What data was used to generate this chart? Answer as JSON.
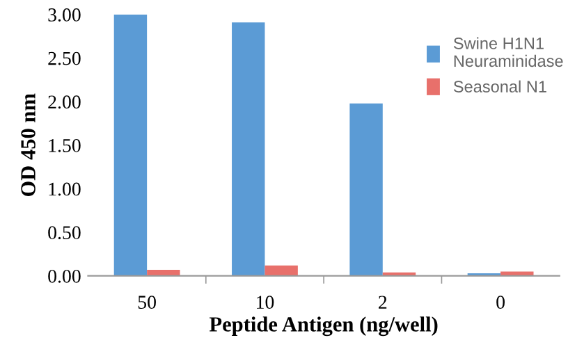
{
  "chart_data": {
    "type": "bar",
    "xlabel": "Peptide Antigen (ng/well)",
    "ylabel": "OD 450 nm",
    "categories": [
      "50",
      "10",
      "2",
      "0"
    ],
    "series": [
      {
        "name": "Swine H1N1\nNeuraminidase",
        "color": "#5b9bd5",
        "values": [
          3.0,
          2.91,
          1.98,
          0.03
        ]
      },
      {
        "name": "Seasonal N1",
        "color": "#e8706b",
        "values": [
          0.07,
          0.12,
          0.04,
          0.05
        ]
      }
    ],
    "ylim": [
      0,
      3.0
    ],
    "yticks": [
      {
        "value": 0,
        "label": "0.00"
      },
      {
        "value": 0.5,
        "label": "0.50"
      },
      {
        "value": 1.0,
        "label": "1.00"
      },
      {
        "value": 1.5,
        "label": "1.50"
      },
      {
        "value": 2.0,
        "label": "2.00"
      },
      {
        "value": 2.5,
        "label": "2.50"
      },
      {
        "value": 3.0,
        "label": "3.00"
      }
    ],
    "grid": false,
    "legend": "top right"
  }
}
